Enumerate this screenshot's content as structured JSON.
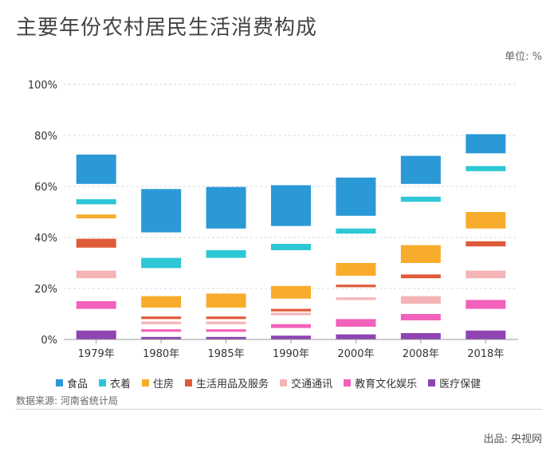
{
  "page": {
    "title": "主要年份农村居民生活消费构成",
    "unit": "单位: %",
    "source": "数据来源: 河南省统计局",
    "publisher": "出品: 央视网"
  },
  "chart_data": {
    "type": "floating-bar",
    "title": "主要年份农村居民生活消费构成",
    "unit": "单位: %",
    "categories": [
      "1979年",
      "1980年",
      "1985年",
      "1990年",
      "2000年",
      "2008年",
      "2018年"
    ],
    "yticks": [
      "0%",
      "20%",
      "40%",
      "60%",
      "80%",
      "100%"
    ],
    "ylim": [
      0,
      100
    ],
    "grid": true,
    "legend_position": "bottom",
    "series": [
      {
        "name": "食品",
        "color": "#2b99d6",
        "ranges": [
          [
            61,
            72.5
          ],
          [
            42,
            59
          ],
          [
            43.5,
            59.8
          ],
          [
            44.5,
            60.5
          ],
          [
            48.5,
            63.5
          ],
          [
            61,
            72
          ],
          [
            73,
            80.5
          ]
        ]
      },
      {
        "name": "衣着",
        "color": "#2dc7d6",
        "ranges": [
          [
            53,
            55
          ],
          [
            28,
            32
          ],
          [
            32,
            35
          ],
          [
            35,
            37.5
          ],
          [
            41.5,
            43.5
          ],
          [
            54,
            56
          ],
          [
            66,
            68
          ]
        ]
      },
      {
        "name": "住房",
        "color": "#f8ac2c",
        "ranges": [
          [
            47.5,
            49
          ],
          [
            12.5,
            17
          ],
          [
            12.5,
            18
          ],
          [
            16,
            21
          ],
          [
            25,
            30
          ],
          [
            30,
            37
          ],
          [
            43.5,
            50
          ]
        ]
      },
      {
        "name": "生活用品及服务",
        "color": "#df5b3a",
        "ranges": [
          [
            36,
            39.5
          ],
          [
            8,
            9
          ],
          [
            8,
            9
          ],
          [
            11,
            12
          ],
          [
            20.5,
            21.5
          ],
          [
            24,
            25.5
          ],
          [
            36.5,
            38.5
          ]
        ]
      },
      {
        "name": "交通通讯",
        "color": "#f4b4b6",
        "ranges": [
          [
            24,
            27
          ],
          [
            6,
            7
          ],
          [
            6,
            7
          ],
          [
            9.5,
            10.5
          ],
          [
            15.5,
            16.5
          ],
          [
            14,
            17
          ],
          [
            24,
            27
          ]
        ]
      },
      {
        "name": "教育文化娱乐",
        "color": "#f261bb",
        "ranges": [
          [
            12,
            15
          ],
          [
            3,
            4
          ],
          [
            3,
            4
          ],
          [
            4.5,
            6
          ],
          [
            5,
            8
          ],
          [
            7.5,
            10
          ],
          [
            12,
            15.5
          ]
        ]
      },
      {
        "name": "医疗保健",
        "color": "#8f44b1",
        "ranges": [
          [
            0,
            3.5
          ],
          [
            0,
            1
          ],
          [
            0,
            1
          ],
          [
            0,
            1.5
          ],
          [
            0,
            2
          ],
          [
            0,
            2.5
          ],
          [
            0,
            3.5
          ]
        ]
      }
    ]
  }
}
